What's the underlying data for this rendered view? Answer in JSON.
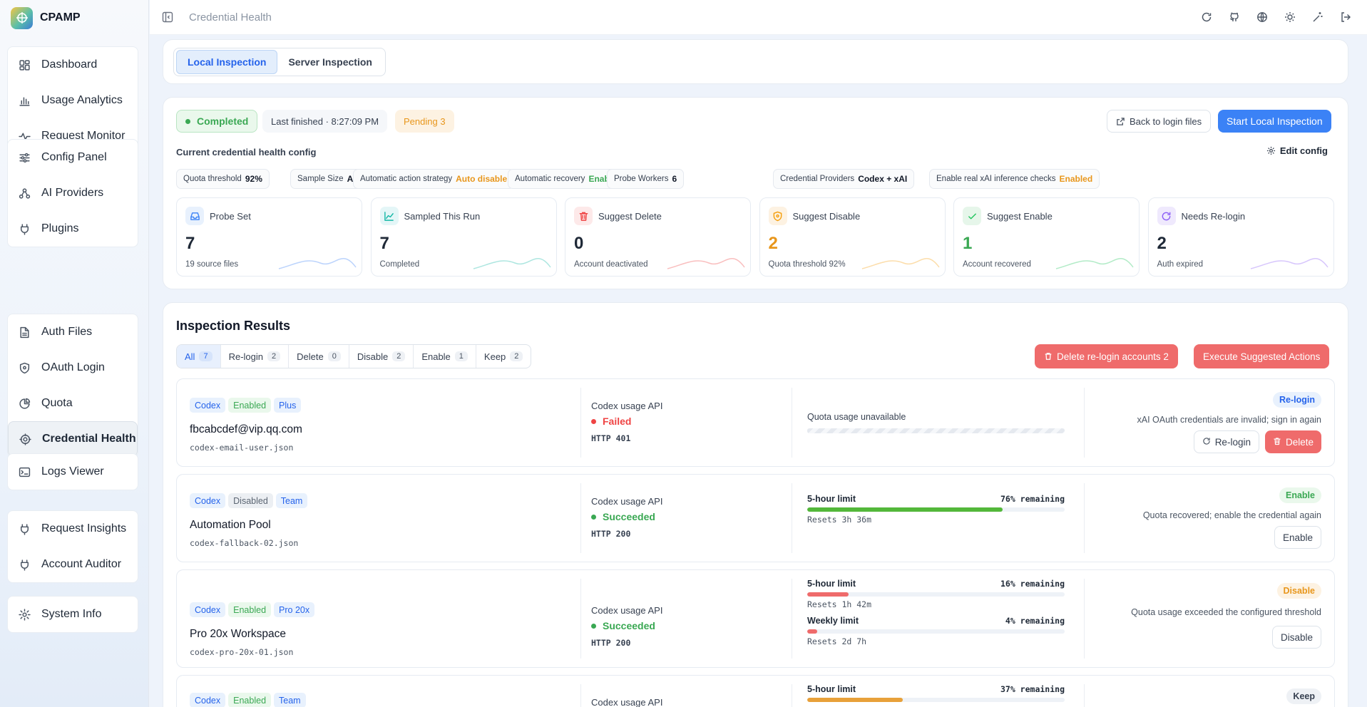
{
  "app": {
    "name": "CPAMP"
  },
  "sidebar": {
    "groups": [
      [
        {
          "label": "Dashboard",
          "icon": "dashboard-icon"
        },
        {
          "label": "Usage Analytics",
          "icon": "bar-chart-icon"
        },
        {
          "label": "Request Monitor",
          "icon": "pulse-icon"
        }
      ],
      [
        {
          "label": "Config Panel",
          "icon": "sliders-icon"
        },
        {
          "label": "AI Providers",
          "icon": "providers-icon"
        },
        {
          "label": "Plugins",
          "icon": "plug-icon"
        }
      ],
      [
        {
          "label": "Auth Files",
          "icon": "file-icon"
        },
        {
          "label": "OAuth Login",
          "icon": "shield-icon"
        },
        {
          "label": "Quota",
          "icon": "pie-icon"
        },
        {
          "label": "Credential Health",
          "icon": "target-icon"
        }
      ],
      [
        {
          "label": "Logs Viewer",
          "icon": "terminal-icon"
        }
      ],
      [
        {
          "label": "Request Insights",
          "icon": "plug-icon"
        },
        {
          "label": "Account Auditor",
          "icon": "plug-icon"
        }
      ],
      [
        {
          "label": "System Info",
          "icon": "gear-icon"
        }
      ]
    ],
    "active": "Credential Health"
  },
  "topbar": {
    "title": "Credential Health"
  },
  "inspection_tabs": {
    "local": "Local Inspection",
    "server": "Server Inspection",
    "active": "local"
  },
  "summary": {
    "status": "Completed",
    "last_finished": "Last finished · 8:27:09 PM",
    "pending": "Pending 3",
    "back_button": "Back to login files",
    "start_button": "Start Local Inspection",
    "config_title": "Current credential health config",
    "edit_config": "Edit config",
    "config": [
      {
        "label": "Quota threshold",
        "value": "92%",
        "color": "#111827"
      },
      {
        "label": "Sample Size",
        "value": "All",
        "color": "#111827"
      },
      {
        "label": "Automatic action strategy",
        "value": "Auto disable",
        "color": "#e8961b"
      },
      {
        "label": "Automatic recovery",
        "value": "Enabled",
        "color": "#3aa853"
      },
      {
        "label": "Probe Workers",
        "value": "6",
        "color": "#111827"
      },
      {
        "label": "Credential Providers",
        "value": "Codex + xAI",
        "color": "#111827"
      },
      {
        "label": "Enable real xAI inference checks",
        "value": "Enabled",
        "color": "#e8961b"
      }
    ],
    "stats": [
      {
        "label": "Probe Set",
        "value": "7",
        "desc": "19 source files",
        "color": "#1f2937",
        "icon": "inbox-icon",
        "tint": "#e8f1fd",
        "stroke": "#3b82f6"
      },
      {
        "label": "Sampled This Run",
        "value": "7",
        "desc": "Completed",
        "color": "#1f2937",
        "icon": "line-chart-icon",
        "tint": "#e4f6f7",
        "stroke": "#14b8a6"
      },
      {
        "label": "Suggest Delete",
        "value": "0",
        "desc": "Account deactivated",
        "color": "#1f2937",
        "icon": "trash-icon",
        "tint": "#fde9e9",
        "stroke": "#ef4444"
      },
      {
        "label": "Suggest Disable",
        "value": "2",
        "desc": "Quota threshold 92%",
        "color": "#e8961b",
        "icon": "shield-icon",
        "tint": "#fdf2e2",
        "stroke": "#f59e0b"
      },
      {
        "label": "Suggest Enable",
        "value": "1",
        "desc": "Account recovered",
        "color": "#3aa853",
        "icon": "check-icon",
        "tint": "#e6f6ea",
        "stroke": "#22c55e"
      },
      {
        "label": "Needs Re-login",
        "value": "2",
        "desc": "Auth expired",
        "color": "#1f2937",
        "icon": "refresh-icon",
        "tint": "#efe9fd",
        "stroke": "#8b5cf6"
      }
    ]
  },
  "results": {
    "title": "Inspection Results",
    "filters": [
      {
        "label": "All",
        "count": "7"
      },
      {
        "label": "Re-login",
        "count": "2"
      },
      {
        "label": "Delete",
        "count": "0"
      },
      {
        "label": "Disable",
        "count": "2"
      },
      {
        "label": "Enable",
        "count": "1"
      },
      {
        "label": "Keep",
        "count": "2"
      }
    ],
    "delete_relogin_button": "Delete re-login accounts 2",
    "execute_button": "Execute Suggested Actions",
    "rows": [
      {
        "tags": [
          {
            "t": "Codex",
            "c": "blue"
          },
          {
            "t": "Enabled",
            "c": "green"
          },
          {
            "t": "Plus",
            "c": "blue"
          }
        ],
        "name": "fbcabcdef@vip.qq.com",
        "file": "codex-email-user.json",
        "api": "Codex usage API",
        "status": "Failed",
        "status_color": "#ef4444",
        "http": "HTTP 401",
        "quota_unavailable": "Quota usage unavailable",
        "action": "Re-login",
        "action_bg": "#e8f1fd",
        "action_fg": "#2563eb",
        "reason": "xAI OAuth credentials are invalid; sign in again",
        "buttons": [
          "Re-login",
          "Delete"
        ]
      },
      {
        "tags": [
          {
            "t": "Codex",
            "c": "blue"
          },
          {
            "t": "Disabled",
            "c": "gray"
          },
          {
            "t": "Team",
            "c": "blue"
          }
        ],
        "name": "Automation Pool",
        "file": "codex-fallback-02.json",
        "api": "Codex usage API",
        "status": "Succeeded",
        "status_color": "#3aa853",
        "http": "HTTP 200",
        "limits": [
          {
            "name": "5-hour limit",
            "remaining": "76% remaining",
            "pct": 0.76,
            "color": "#53b83a",
            "reset": "Resets 3h 36m"
          }
        ],
        "action": "Enable",
        "action_bg": "#eaf8ec",
        "action_fg": "#3aa853",
        "reason": "Quota recovered; enable the credential again",
        "buttons": [
          "Enable"
        ]
      },
      {
        "tags": [
          {
            "t": "Codex",
            "c": "blue"
          },
          {
            "t": "Enabled",
            "c": "green"
          },
          {
            "t": "Pro 20x",
            "c": "blue"
          }
        ],
        "name": "Pro 20x Workspace",
        "file": "codex-pro-20x-01.json",
        "api": "Codex usage API",
        "status": "Succeeded",
        "status_color": "#3aa853",
        "http": "HTTP 200",
        "limits": [
          {
            "name": "5-hour limit",
            "remaining": "16% remaining",
            "pct": 0.16,
            "color": "#ef6b6b",
            "reset": "Resets 1h 42m"
          },
          {
            "name": "Weekly limit",
            "remaining": "4% remaining",
            "pct": 0.04,
            "color": "#ef6b6b",
            "reset": "Resets 2d 7h"
          }
        ],
        "action": "Disable",
        "action_bg": "#fdf2e2",
        "action_fg": "#e8961b",
        "reason": "Quota usage exceeded the configured threshold",
        "buttons": [
          "Disable"
        ]
      },
      {
        "tags": [
          {
            "t": "Codex",
            "c": "blue"
          },
          {
            "t": "Enabled",
            "c": "green"
          },
          {
            "t": "Team",
            "c": "blue"
          }
        ],
        "api": "Codex usage API",
        "limits": [
          {
            "name": "5-hour limit",
            "remaining": "37% remaining",
            "pct": 0.37,
            "color": "#e8a13a"
          }
        ],
        "action": "Keep",
        "action_bg": "#eef1f5",
        "action_fg": "#374151"
      }
    ]
  }
}
